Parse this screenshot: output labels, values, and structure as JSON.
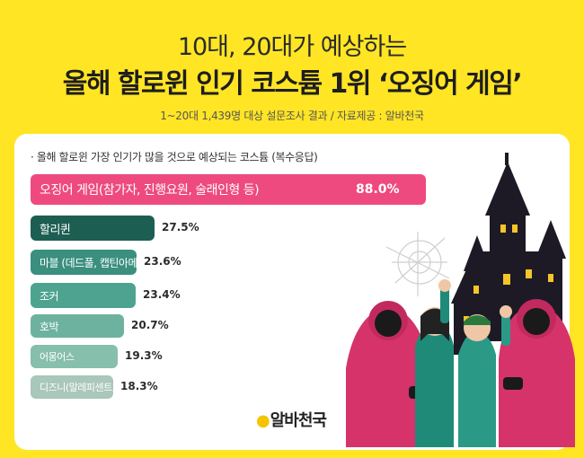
{
  "header": {
    "title_line1": "10대, 20대가 예상하는",
    "title_line2": "올해 할로윈 인기 코스튬 1위 ‘오징어 게임’",
    "subtitle": "1~20대 1,439명 대상 설문조사 결과 / 자료제공 : 알바천국"
  },
  "chart_data": {
    "type": "bar",
    "orientation": "horizontal",
    "title": "올해 할로윈 가장 인기가 많을 것으로 예상되는 코스튬 (복수응답)",
    "categories": [
      "오징어 게임(참가자, 진행요원, 술래인형 등)",
      "할리퀸",
      "마블 (데드풀, 캡틴아메리카, 토르 등)",
      "조커",
      "호박",
      "어몽어스",
      "디즈니(말레피센트, 겨울왕국 등)"
    ],
    "values": [
      88.0,
      27.5,
      23.6,
      23.4,
      20.7,
      19.3,
      18.3
    ],
    "value_labels": [
      "88.0%",
      "27.5%",
      "23.6%",
      "23.4%",
      "20.7%",
      "19.3%",
      "18.3%"
    ],
    "colors": [
      "#EE4A80",
      "#1C5E52",
      "#3A8F7F",
      "#4EA390",
      "#6DB29F",
      "#86BFAC",
      "#A9C7BB"
    ],
    "value_max": 100
  },
  "logo": {
    "text": "알바천국"
  }
}
